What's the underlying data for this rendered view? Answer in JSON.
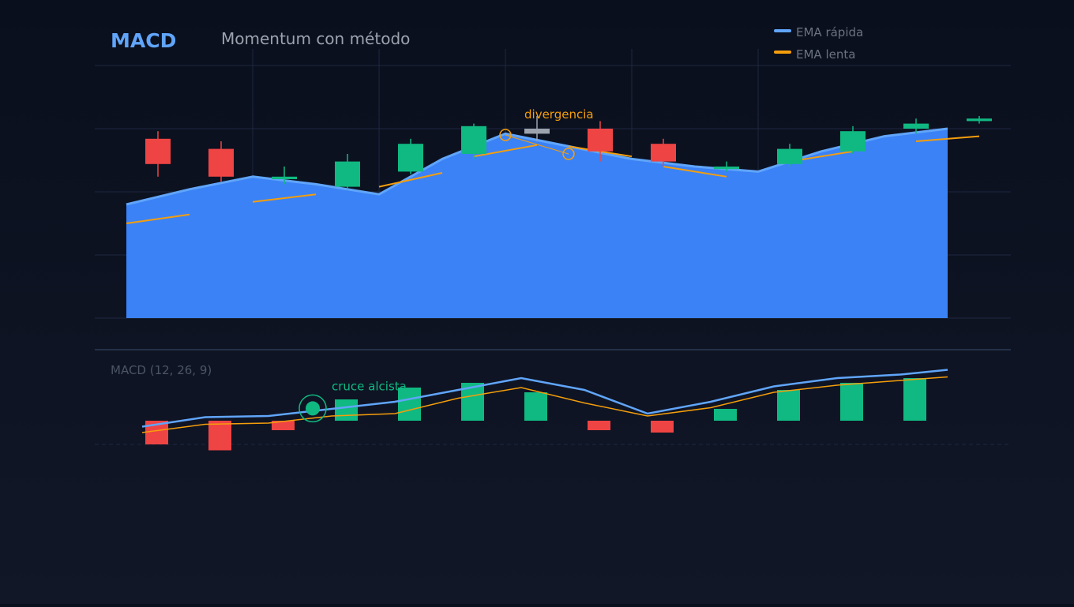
{
  "colors": {
    "background": "#0b1020",
    "grid": "#1e2740",
    "area_fill": "#3b82f6",
    "fast_line": "#60a5fa",
    "slow_line": "#f59e0b",
    "bull": "#10b981",
    "bear": "#ef4444",
    "neutral": "#9ca3af",
    "title": "#60a5fa",
    "subtitle": "#9ca3af",
    "legend_text": "#6b7280",
    "annotation_divergence": "#f59e0b",
    "annotation_cross": "#10b981",
    "panel_label": "#4b5563"
  },
  "header": {
    "title": "MACD",
    "subtitle": "Momentum con método"
  },
  "chart_data": [
    {
      "type": "line",
      "panel": "price",
      "x": [
        1,
        2,
        3,
        4,
        5,
        6,
        7,
        8,
        9,
        10,
        11,
        12,
        13,
        14
      ],
      "ylim": [
        0,
        100
      ],
      "grid": true,
      "legend_position": "top-right",
      "candles": [
        {
          "open": 71,
          "close": 61,
          "high": 74,
          "low": 56
        },
        {
          "open": 67,
          "close": 56,
          "high": 70,
          "low": 54
        },
        {
          "open": 55,
          "close": 56,
          "high": 60,
          "low": 53
        },
        {
          "open": 52,
          "close": 62,
          "high": 65,
          "low": 51
        },
        {
          "open": 58,
          "close": 69,
          "high": 71,
          "low": 57
        },
        {
          "open": 65,
          "close": 76,
          "high": 77,
          "low": 63
        },
        {
          "open": 75,
          "close": 73,
          "high": 80,
          "low": 70
        },
        {
          "open": 75,
          "close": 66,
          "high": 78,
          "low": 62
        },
        {
          "open": 69,
          "close": 62,
          "high": 71,
          "low": 60
        },
        {
          "open": 59,
          "close": 60,
          "high": 62,
          "low": 58
        },
        {
          "open": 61,
          "close": 67,
          "high": 69,
          "low": 60
        },
        {
          "open": 66,
          "close": 74,
          "high": 76,
          "low": 65
        },
        {
          "open": 75,
          "close": 77,
          "high": 79,
          "low": 73
        },
        {
          "open": 78,
          "close": 79,
          "high": 80,
          "low": 77
        }
      ],
      "series": [
        {
          "name": "EMA rápida",
          "x": [
            1,
            2,
            3,
            4,
            5,
            6,
            7,
            8,
            9,
            10,
            11,
            12,
            13,
            14
          ],
          "values": [
            45,
            51,
            56,
            53,
            49,
            63,
            73,
            68,
            63,
            60,
            58,
            66,
            72,
            75
          ]
        },
        {
          "name": "EMA lenta",
          "segments": [
            {
              "x": [
                1,
                2
              ],
              "values": [
                37.5,
                41
              ]
            },
            {
              "x": [
                3,
                4
              ],
              "values": [
                46,
                49
              ]
            },
            {
              "x": [
                5,
                6
              ],
              "values": [
                52,
                57.5
              ]
            },
            {
              "x": [
                6.5,
                7.5
              ],
              "values": [
                64,
                68.5
              ]
            },
            {
              "x": [
                8,
                9
              ],
              "values": [
                68,
                64
              ]
            },
            {
              "x": [
                9.5,
                10.5
              ],
              "values": [
                60,
                56
              ]
            },
            {
              "x": [
                11.5,
                12.5
              ],
              "values": [
                62,
                66
              ]
            },
            {
              "x": [
                13.5,
                14.5
              ],
              "values": [
                70,
                72
              ]
            }
          ]
        }
      ],
      "annotations": [
        {
          "label": "divergencia",
          "x": 7,
          "y": 72.5,
          "label_y": 79
        }
      ]
    },
    {
      "type": "bar",
      "panel": "macd",
      "label": "MACD (12, 26, 9)",
      "x": [
        1,
        2,
        3,
        4,
        5,
        6,
        7,
        8,
        9,
        10,
        11,
        12,
        13
      ],
      "ylim": [
        -1,
        3
      ],
      "histogram": [
        -1,
        -1.25,
        -0.4,
        0.9,
        1.4,
        1.6,
        1.2,
        -0.4,
        -0.5,
        0.5,
        1.3,
        1.6,
        1.8
      ],
      "series": [
        {
          "name": "EMA rápida",
          "x": [
            1,
            2,
            3,
            4,
            5,
            6,
            7,
            8,
            9,
            10,
            11,
            12,
            13,
            14
          ],
          "values": [
            -0.25,
            0.15,
            0.2,
            0.5,
            0.8,
            1.3,
            1.8,
            1.3,
            0.3,
            0.8,
            1.45,
            1.8,
            1.95,
            2.15
          ]
        },
        {
          "name": "EMA lenta",
          "x": [
            1,
            2,
            3,
            4,
            5,
            6,
            7,
            8,
            9,
            10,
            11,
            12,
            13,
            14
          ],
          "values": [
            -0.5,
            -0.15,
            -0.1,
            0.2,
            0.3,
            0.95,
            1.4,
            0.75,
            0.2,
            0.55,
            1.2,
            1.5,
            1.7,
            1.85
          ]
        }
      ],
      "annotations": [
        {
          "label": "cruce alcista",
          "x": 3.85,
          "y": 0.52,
          "label_y": 1.28
        }
      ]
    }
  ]
}
